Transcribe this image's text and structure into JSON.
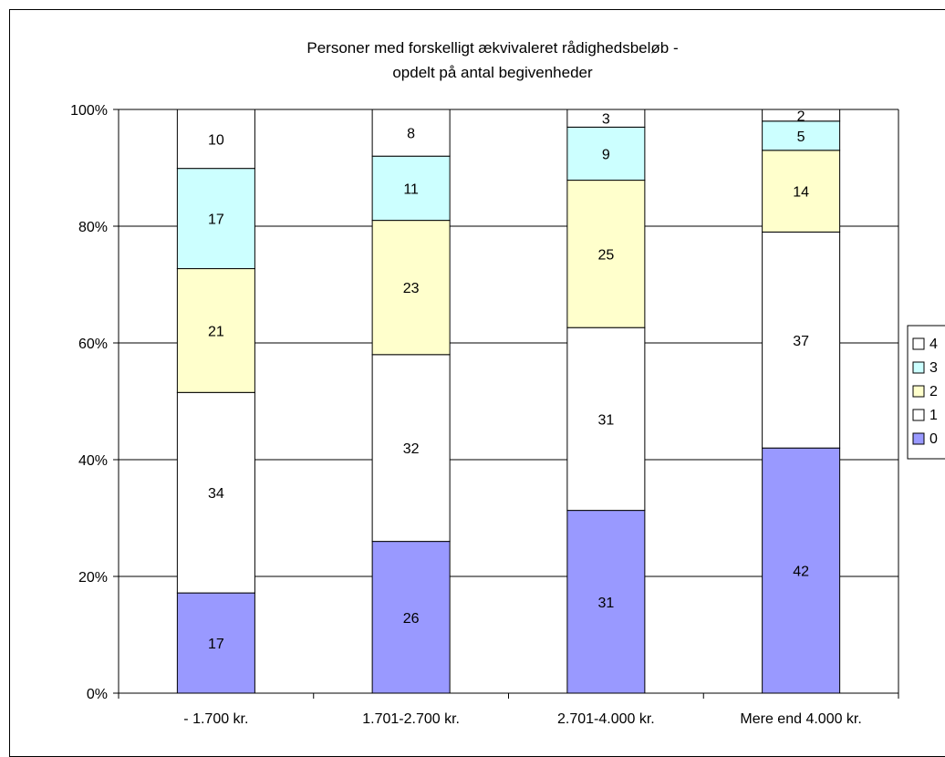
{
  "chart_data": {
    "type": "bar",
    "stacked": true,
    "percent": true,
    "title": "Personer med forskelligt ækvivaleret rådighedsbeløb - opdelt på antal begivenheder",
    "title_lines": [
      "Personer med forskelligt ækvivaleret rådighedsbeløb -",
      "opdelt på antal begivenheder"
    ],
    "categories": [
      "- 1.700 kr.",
      "1.701-2.700 kr.",
      "2.701-4.000 kr.",
      "Mere end 4.000 kr."
    ],
    "series": [
      {
        "name": "0",
        "color": "#9999ff",
        "values": [
          17,
          26,
          31,
          42
        ]
      },
      {
        "name": "1",
        "color": "#ffffff",
        "values": [
          34,
          32,
          31,
          37
        ]
      },
      {
        "name": "2",
        "color": "#ffffcc",
        "values": [
          21,
          23,
          25,
          14
        ]
      },
      {
        "name": "3",
        "color": "#ccffff",
        "values": [
          17,
          11,
          9,
          5
        ]
      },
      {
        "name": "4",
        "color": "#ffffff",
        "values": [
          10,
          8,
          3,
          2
        ]
      }
    ],
    "ylim": [
      0,
      100
    ],
    "yticks": [
      "0%",
      "20%",
      "40%",
      "60%",
      "80%",
      "100%"
    ],
    "grid": true,
    "legend": "right"
  }
}
